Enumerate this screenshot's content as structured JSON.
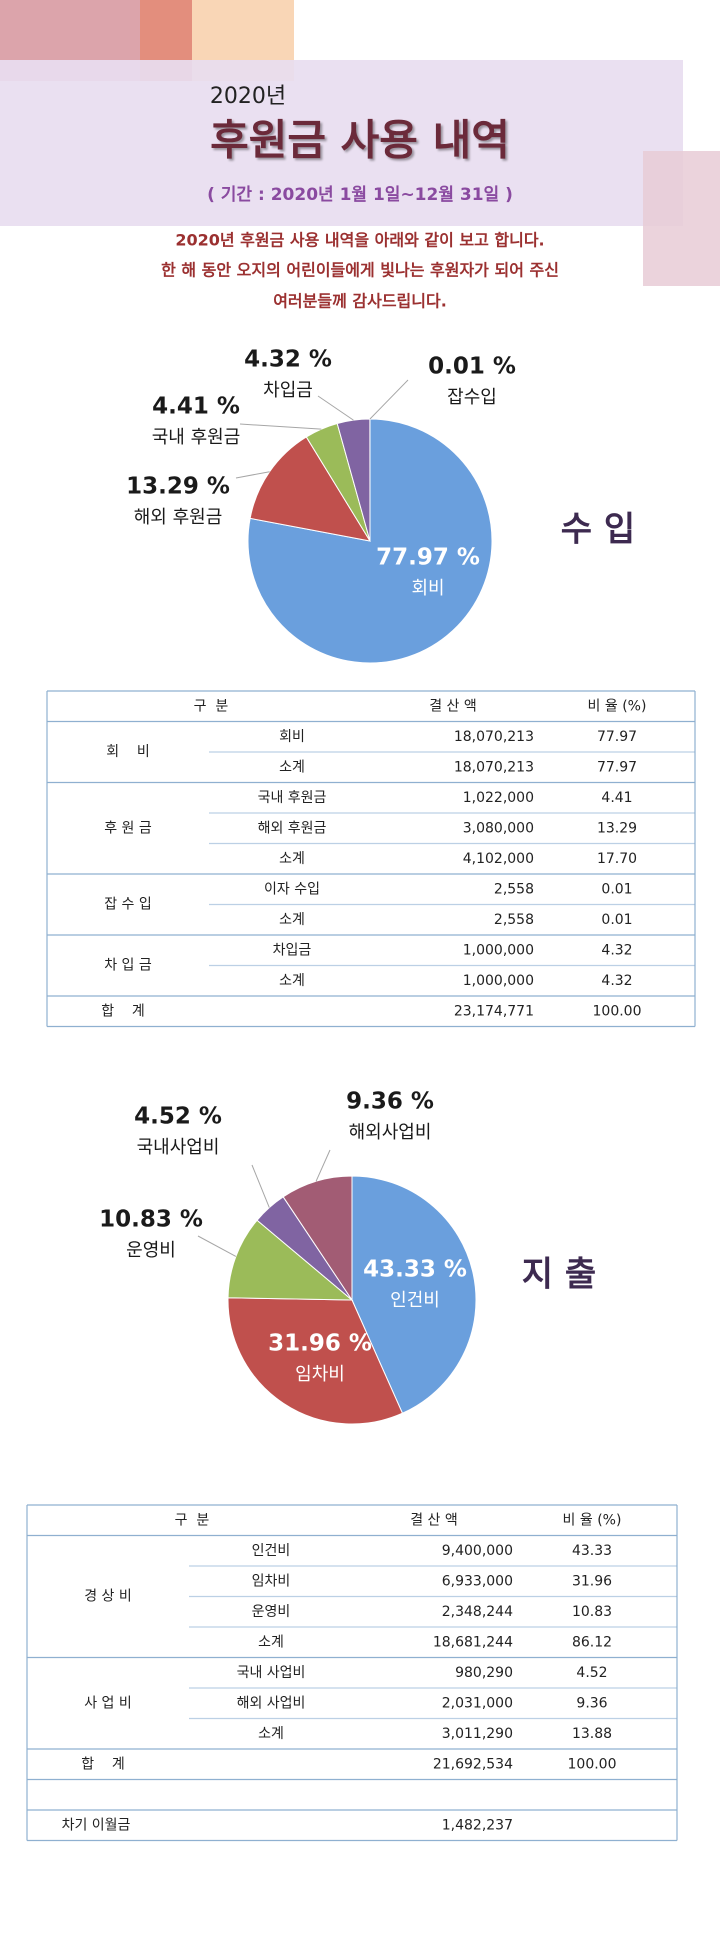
{
  "header": {
    "year": "2020년",
    "title": "후원금 사용 내역",
    "period": "( 기간 : 2020년 1월 1일~12월 31일 )",
    "intro": [
      "2020년 후원금 사용 내역을 아래와 같이 보고 합니다.",
      "한 해 동안 오지의 어린이들에게 빛나는 후원자가 되어 주신",
      "여러분들께 감사드립니다."
    ]
  },
  "chart_data": [
    {
      "type": "pie",
      "title": "수 입",
      "categories": [
        "회비",
        "해외 후원금",
        "국내 후원금",
        "차입금",
        "잡수입"
      ],
      "values": [
        77.97,
        13.29,
        4.41,
        4.32,
        0.01
      ],
      "value_labels": [
        "77.97 %",
        "13.29 %",
        "4.41 %",
        "4.32 %",
        "0.01 %"
      ],
      "colors": [
        "#6a9fdd",
        "#c0504d",
        "#9bbb59",
        "#8064a2",
        "#4bacc6"
      ]
    },
    {
      "type": "pie",
      "title": "지 출",
      "categories": [
        "인건비",
        "임차비",
        "운영비",
        "국내사업비",
        "해외사업비"
      ],
      "values": [
        43.33,
        31.96,
        10.83,
        4.52,
        9.36
      ],
      "value_labels": [
        "43.33 %",
        "31.96 %",
        "10.83 %",
        "4.52 %",
        "9.36 %"
      ],
      "colors": [
        "#6a9fdd",
        "#c0504d",
        "#9bbb59",
        "#8064a2",
        "#a25c74"
      ]
    }
  ],
  "tables": [
    {
      "header": [
        "구  분",
        "결 산 액",
        "비 율 (%)"
      ],
      "groups": [
        {
          "name": "회    비",
          "rows": [
            [
              "회비",
              "18,070,213",
              "77.97"
            ],
            [
              "소계",
              "18,070,213",
              "77.97"
            ]
          ]
        },
        {
          "name": "후 원 금",
          "rows": [
            [
              "국내 후원금",
              "1,022,000",
              "4.41"
            ],
            [
              "해외 후원금",
              "3,080,000",
              "13.29"
            ],
            [
              "소계",
              "4,102,000",
              "17.70"
            ]
          ]
        },
        {
          "name": "잡 수 입",
          "rows": [
            [
              "이자 수입",
              "2,558",
              "0.01"
            ],
            [
              "소계",
              "2,558",
              "0.01"
            ]
          ]
        },
        {
          "name": "차 입 금",
          "rows": [
            [
              "차입금",
              "1,000,000",
              "4.32"
            ],
            [
              "소계",
              "1,000,000",
              "4.32"
            ]
          ]
        }
      ],
      "total": [
        "합    계",
        "23,174,771",
        "100.00"
      ]
    },
    {
      "header": [
        "구  분",
        "결 산 액",
        "비 율 (%)"
      ],
      "groups": [
        {
          "name": "경 상 비",
          "rows": [
            [
              "인건비",
              "9,400,000",
              "43.33"
            ],
            [
              "임차비",
              "6,933,000",
              "31.96"
            ],
            [
              "운영비",
              "2,348,244",
              "10.83"
            ],
            [
              "소계",
              "18,681,244",
              "86.12"
            ]
          ]
        },
        {
          "name": "사 업 비",
          "rows": [
            [
              "국내 사업비",
              "980,290",
              "4.52"
            ],
            [
              "해외 사업비",
              "2,031,000",
              "9.36"
            ],
            [
              "소계",
              "3,011,290",
              "13.88"
            ]
          ]
        }
      ],
      "total": [
        "합    계",
        "21,692,534",
        "100.00"
      ],
      "carry": [
        "차기 이월금",
        "1,482,237"
      ]
    }
  ]
}
